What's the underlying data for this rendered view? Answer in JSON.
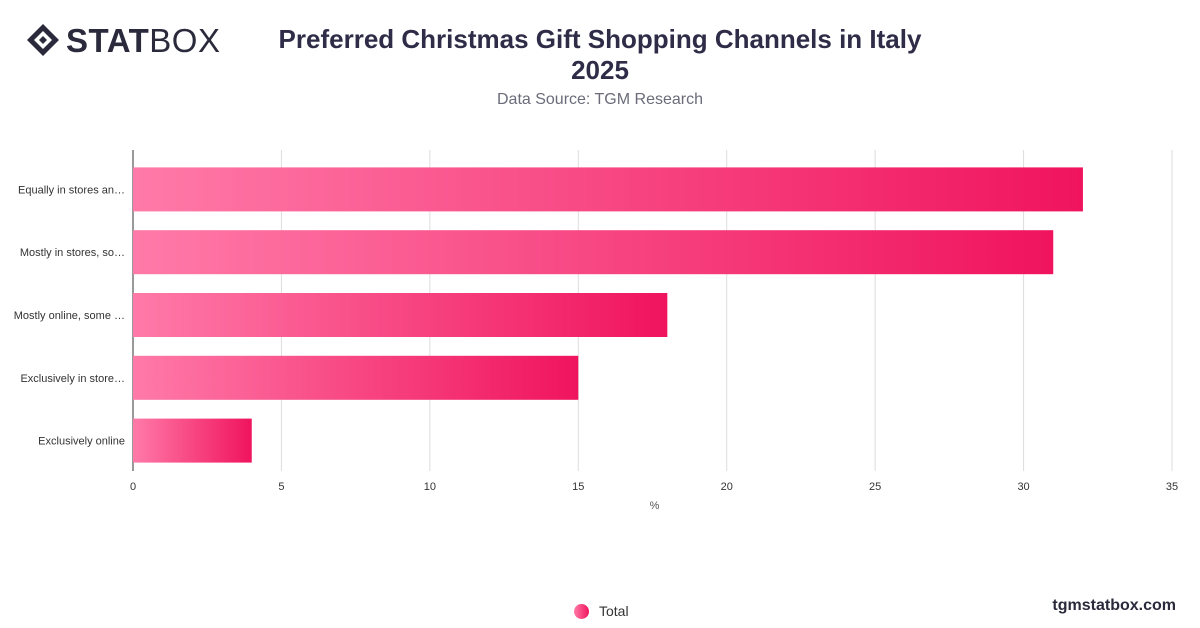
{
  "brand": {
    "name_bold": "STAT",
    "name_light": "BOX",
    "site": "tgmstatbox.com"
  },
  "header": {
    "title": "Preferred Christmas Gift Shopping Channels in Italy 2025",
    "subtitle": "Data Source: TGM Research"
  },
  "legend": {
    "label": "Total"
  },
  "colors": {
    "bar_start": "#ff7aa8",
    "bar_end": "#f0145e",
    "grid": "#dddddd",
    "text": "#333333"
  },
  "chart_data": {
    "type": "bar",
    "orientation": "horizontal",
    "categories": [
      "Equally in stores an…",
      "Mostly in stores, so…",
      "Mostly online, some …",
      "Exclusively in store…",
      "Exclusively online"
    ],
    "series": [
      {
        "name": "Total",
        "values": [
          32,
          31,
          18,
          15,
          4
        ]
      }
    ],
    "xlabel": "%",
    "xlim": [
      0,
      35
    ],
    "xticks": [
      0,
      5,
      10,
      15,
      20,
      25,
      30,
      35
    ],
    "grid": true,
    "legend_position": "bottom"
  }
}
